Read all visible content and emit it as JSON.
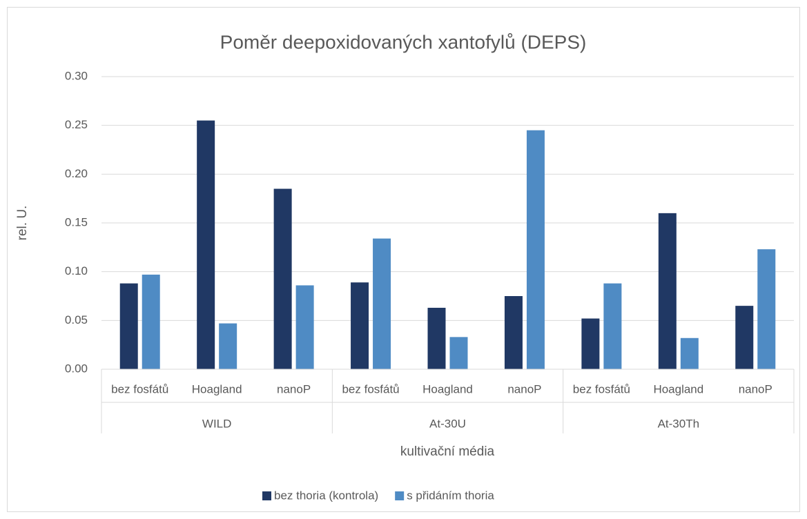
{
  "chart_data": {
    "type": "bar",
    "title": "Poměr deepoxidovaných xantofylů (DEPS)",
    "y_label": "rel. U.",
    "x_label": "kultivační média",
    "category_groups": [
      {
        "label": "WILD",
        "categories": [
          "bez fosfátů",
          "Hoagland",
          "nanoP"
        ]
      },
      {
        "label": "At-30U",
        "categories": [
          "bez fosfátů",
          "Hoagland",
          "nanoP"
        ]
      },
      {
        "label": "At-30Th",
        "categories": [
          "bez fosfátů",
          "Hoagland",
          "nanoP"
        ]
      }
    ],
    "series": [
      {
        "name": "bez thoria (kontrola)",
        "color": "#203864",
        "values": [
          0.088,
          0.255,
          0.185,
          0.089,
          0.063,
          0.075,
          0.052,
          0.16,
          0.065
        ]
      },
      {
        "name": "s přidáním thoria",
        "color": "#4f8bc4",
        "values": [
          0.097,
          0.047,
          0.086,
          0.134,
          0.033,
          0.245,
          0.088,
          0.032,
          0.123
        ]
      }
    ],
    "ylim": [
      0,
      0.3
    ],
    "yticks": [
      {
        "value": 0,
        "label": "0.00"
      },
      {
        "value": 0.05,
        "label": "0.05"
      },
      {
        "value": 0.1,
        "label": "0.10"
      },
      {
        "value": 0.15,
        "label": "0.15"
      },
      {
        "value": 0.2,
        "label": "0.20"
      },
      {
        "value": 0.25,
        "label": "0.25"
      },
      {
        "value": 0.3,
        "label": "0.30"
      }
    ],
    "grid": true,
    "legend": "bottom"
  }
}
